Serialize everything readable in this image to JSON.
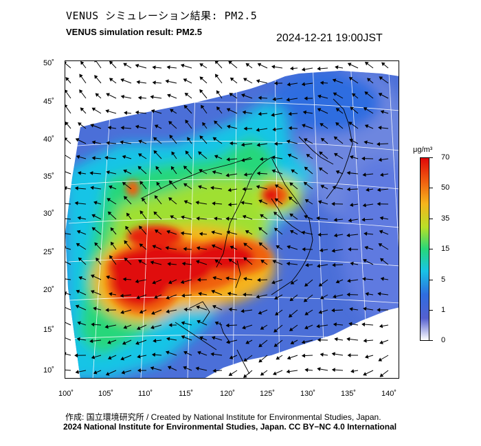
{
  "header": {
    "title_jp": "VENUS シミュレーション結果: PM2.5",
    "title_en": "VENUS simulation result: PM2.5",
    "timestamp": "2024-12-21 19:00JST"
  },
  "map": {
    "lon_ticks": [
      "100˚",
      "105˚",
      "110˚",
      "115˚",
      "120˚",
      "125˚",
      "130˚",
      "135˚",
      "140˚"
    ],
    "lat_ticks": [
      "50˚",
      "45˚",
      "40˚",
      "35˚",
      "30˚",
      "25˚",
      "20˚",
      "15˚",
      "10˚"
    ]
  },
  "colorbar": {
    "unit": "μg/m³",
    "labels": [
      "70",
      "50",
      "35",
      "15",
      "5",
      "1",
      "0"
    ]
  },
  "footer": {
    "credit": "作成: 国立環境研究所 / Created by National Institute for Environmental Studies, Japan.",
    "copyright": "2024 National Institute for Environmental Studies, Japan. CC BY−NC 4.0 International"
  }
}
